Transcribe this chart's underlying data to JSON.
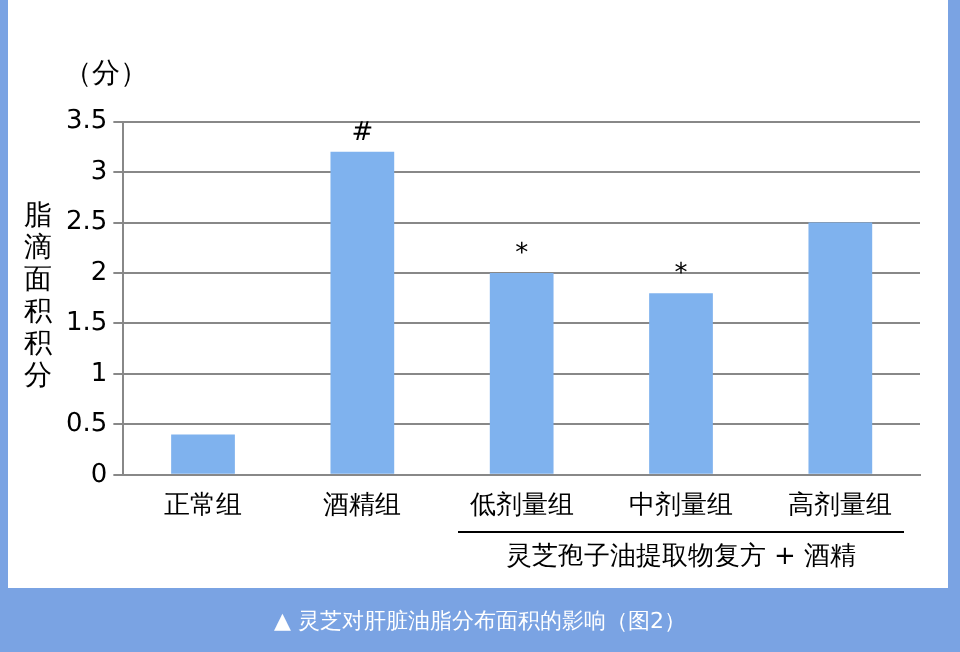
{
  "chart_data": {
    "type": "bar",
    "ylabel": "脂滴面积积分",
    "categories": [
      "正常组",
      "酒精组",
      "低剂量组",
      "中剂量组",
      "高剂量组"
    ],
    "values": [
      0.4,
      3.2,
      2.0,
      1.8,
      2.5
    ],
    "color": "#7fb2ee",
    "ylim": [
      0,
      3.5
    ],
    "yticks": [
      0,
      0.5,
      1,
      1.5,
      2,
      2.5,
      3,
      3.5
    ],
    "grid": "y",
    "legend": false,
    "annotations": [
      "（分）",
      "灵芝孢子油提取物复方 + 酒精",
      "▲ 灵芝对肝脏油脂分布面积的影响（图2）",
      {
        "text": "#",
        "x": "酒精组",
        "y": 3.2
      },
      {
        "text": "*",
        "x": "低剂量组",
        "y": 2.0
      },
      {
        "text": "*",
        "x": "中剂量组",
        "y": 1.8
      }
    ]
  }
}
